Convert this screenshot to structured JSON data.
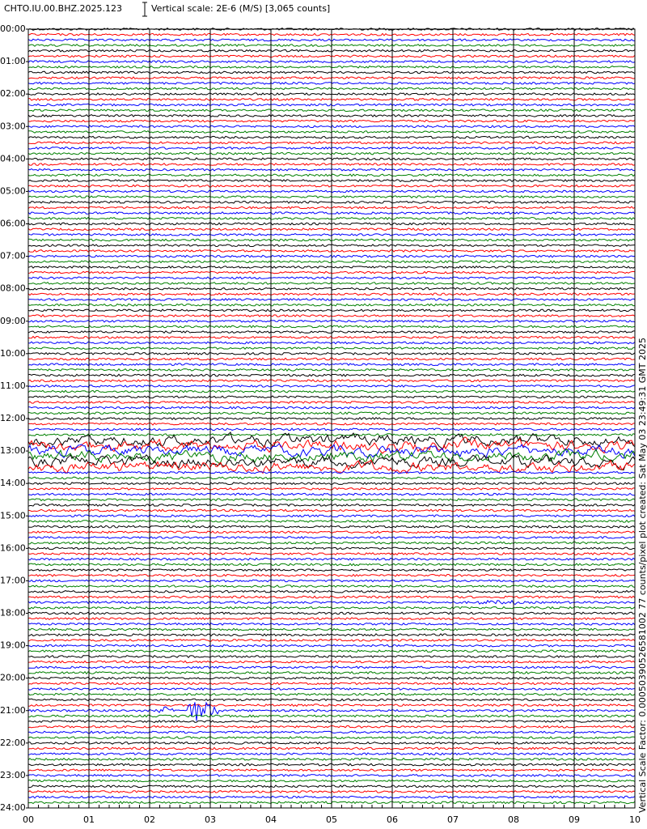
{
  "chart_data": {
    "type": "helicorder",
    "title": "CHTO.IU.00.BHZ.2025.123",
    "subtitle": "Vertical scale: 2E-6 (M/S) [3,065 counts]",
    "side_note": "Vertical Scale Factor: 0.00050390526581002 77 counts/pixel plot created: Sat May 03 23:49:31 GMT 2025",
    "colors": [
      "#000000",
      "#ff0000",
      "#0000ff",
      "#008000"
    ],
    "xlim": [
      0,
      10
    ],
    "xticks": [
      {
        "value": 0,
        "label": "00"
      },
      {
        "value": 1,
        "label": "01"
      },
      {
        "value": 2,
        "label": "02"
      },
      {
        "value": 3,
        "label": "03"
      },
      {
        "value": 4,
        "label": "04"
      },
      {
        "value": 5,
        "label": "05"
      },
      {
        "value": 6,
        "label": "06"
      },
      {
        "value": 7,
        "label": "07"
      },
      {
        "value": 8,
        "label": "08"
      },
      {
        "value": 9,
        "label": "09"
      },
      {
        "value": 10,
        "label": "10"
      }
    ],
    "ylim": [
      0,
      24
    ],
    "yticks": [
      {
        "value": 0,
        "label": "00:00"
      },
      {
        "value": 1,
        "label": "01:00"
      },
      {
        "value": 2,
        "label": "02:00"
      },
      {
        "value": 3,
        "label": "03:00"
      },
      {
        "value": 4,
        "label": "04:00"
      },
      {
        "value": 5,
        "label": "05:00"
      },
      {
        "value": 6,
        "label": "06:00"
      },
      {
        "value": 7,
        "label": "07:00"
      },
      {
        "value": 8,
        "label": "08:00"
      },
      {
        "value": 9,
        "label": "09:00"
      },
      {
        "value": 10,
        "label": "10:00"
      },
      {
        "value": 11,
        "label": "11:00"
      },
      {
        "value": 12,
        "label": "12:00"
      },
      {
        "value": 13,
        "label": "13:00"
      },
      {
        "value": 14,
        "label": "14:00"
      },
      {
        "value": 15,
        "label": "15:00"
      },
      {
        "value": 16,
        "label": "16:00"
      },
      {
        "value": 17,
        "label": "17:00"
      },
      {
        "value": 18,
        "label": "18:00"
      },
      {
        "value": 19,
        "label": "19:00"
      },
      {
        "value": 20,
        "label": "20:00"
      },
      {
        "value": 21,
        "label": "21:00"
      },
      {
        "value": 22,
        "label": "22:00"
      },
      {
        "value": 23,
        "label": "23:00"
      },
      {
        "value": 24,
        "label": "24:00"
      }
    ]
  }
}
